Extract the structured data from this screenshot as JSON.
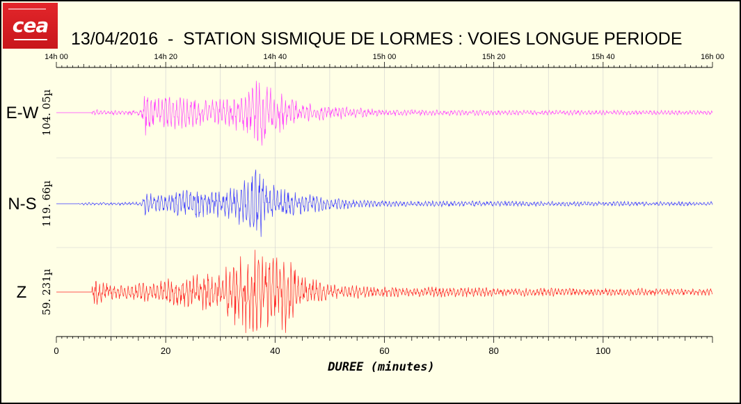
{
  "header": {
    "logo_text": "cea",
    "title": "13/04/2016  -  STATION SISMIQUE DE LORMES : VOIES LONGUE PERIODE"
  },
  "chart_data": {
    "type": "line",
    "top_axis": {
      "labels": [
        "14h 00",
        "14h 20",
        "14h 40",
        "15h 00",
        "15h 20",
        "15h 40",
        "16h 00"
      ],
      "minutes": [
        0,
        20,
        40,
        60,
        80,
        100,
        120
      ]
    },
    "x": {
      "label": "DUREE (minutes)",
      "range": [
        0,
        120
      ],
      "tick_values": [
        0,
        20,
        40,
        60,
        80,
        100
      ],
      "tick_labels": [
        "0",
        "20",
        "40",
        "60",
        "80",
        "100"
      ]
    },
    "grid": true,
    "series": [
      {
        "name": "E-W",
        "scale_label": "104. 05µ",
        "color": "#ff40ff",
        "noise_start_min": 6.5,
        "envelope_points": [
          [
            0,
            0
          ],
          [
            6.5,
            0.03
          ],
          [
            7,
            0.08
          ],
          [
            7.4,
            0.1
          ],
          [
            8,
            0.05
          ],
          [
            12,
            0.06
          ],
          [
            15.5,
            0.07
          ],
          [
            16.3,
            0.55
          ],
          [
            17.5,
            0.35
          ],
          [
            20,
            0.4
          ],
          [
            24,
            0.35
          ],
          [
            28,
            0.3
          ],
          [
            32,
            0.35
          ],
          [
            35,
            0.55
          ],
          [
            37,
            0.8
          ],
          [
            37.8,
            1.0
          ],
          [
            38.4,
            0.85
          ],
          [
            40,
            0.5
          ],
          [
            42,
            0.45
          ],
          [
            44,
            0.3
          ],
          [
            48,
            0.2
          ],
          [
            55,
            0.12
          ],
          [
            60,
            0.08
          ],
          [
            80,
            0.06
          ],
          [
            120,
            0.05
          ]
        ]
      },
      {
        "name": "N-S",
        "scale_label": "119. 66µ",
        "color": "#3a3aff",
        "noise_start_min": 4,
        "envelope_points": [
          [
            0,
            0
          ],
          [
            4,
            0.03
          ],
          [
            15.5,
            0.04
          ],
          [
            16.3,
            0.3
          ],
          [
            18,
            0.2
          ],
          [
            20,
            0.25
          ],
          [
            22,
            0.3
          ],
          [
            26,
            0.4
          ],
          [
            28,
            0.3
          ],
          [
            31,
            0.35
          ],
          [
            34,
            0.5
          ],
          [
            36.3,
            0.95
          ],
          [
            37,
            1.0
          ],
          [
            37.8,
            0.8
          ],
          [
            39,
            0.45
          ],
          [
            42,
            0.35
          ],
          [
            45,
            0.25
          ],
          [
            50,
            0.15
          ],
          [
            55,
            0.1
          ],
          [
            60,
            0.07
          ],
          [
            120,
            0.05
          ]
        ]
      },
      {
        "name": "Z",
        "scale_label": "59. 231µ",
        "color": "#ff2020",
        "noise_start_min": 6.5,
        "envelope_points": [
          [
            0,
            0
          ],
          [
            6.5,
            0.1
          ],
          [
            7.3,
            0.5
          ],
          [
            8,
            0.25
          ],
          [
            12,
            0.15
          ],
          [
            15,
            0.2
          ],
          [
            16.3,
            0.3
          ],
          [
            18,
            0.2
          ],
          [
            20,
            0.3
          ],
          [
            24,
            0.35
          ],
          [
            27,
            0.5
          ],
          [
            29,
            0.4
          ],
          [
            31,
            0.6
          ],
          [
            33,
            0.9
          ],
          [
            35,
            1.0
          ],
          [
            37,
            0.95
          ],
          [
            39,
            0.75
          ],
          [
            41,
            0.9
          ],
          [
            42.5,
            1.0
          ],
          [
            44,
            0.5
          ],
          [
            46,
            0.4
          ],
          [
            49,
            0.2
          ],
          [
            55,
            0.15
          ],
          [
            60,
            0.12
          ],
          [
            73.5,
            0.12
          ],
          [
            80,
            0.1
          ],
          [
            120,
            0.08
          ]
        ]
      }
    ]
  }
}
